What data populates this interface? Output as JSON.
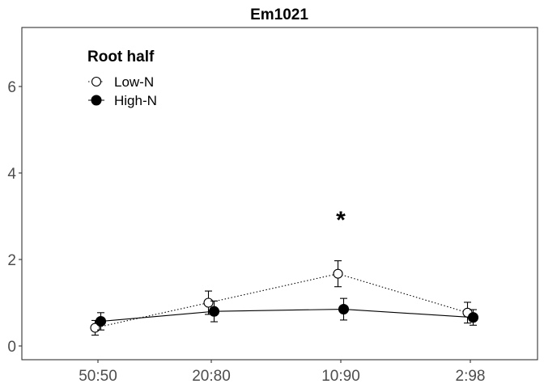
{
  "chart_data": {
    "type": "line",
    "title": "Em1021",
    "xlabel": "",
    "ylabel": "",
    "categories": [
      "50:50",
      "20:80",
      "10:90",
      "2:98"
    ],
    "ylim": [
      -0.35,
      7.4
    ],
    "yticks": [
      0,
      2,
      4,
      6
    ],
    "grid": false,
    "legend": {
      "title": "Root half",
      "position": "top-left"
    },
    "series": [
      {
        "name": "Low-N",
        "marker": "open-circle",
        "line": "dotted",
        "values": [
          0.42,
          1.0,
          1.67,
          0.77
        ],
        "errors": [
          0.17,
          0.27,
          0.3,
          0.24
        ]
      },
      {
        "name": "High-N",
        "marker": "filled-circle",
        "line": "solid",
        "values": [
          0.57,
          0.8,
          0.85,
          0.66
        ],
        "errors": [
          0.2,
          0.24,
          0.25,
          0.18
        ]
      }
    ],
    "annotations": [
      {
        "text": "*",
        "category": "10:90",
        "y": 3.1
      }
    ]
  }
}
